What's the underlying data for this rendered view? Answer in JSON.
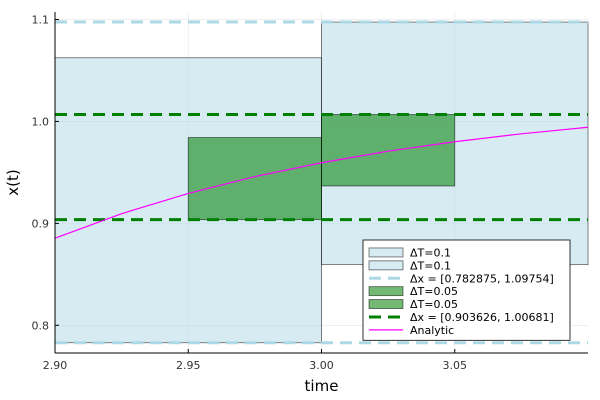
{
  "chart_data": {
    "type": "line",
    "title": "",
    "xlabel": "time",
    "ylabel": "x(t)",
    "xlim": [
      2.9,
      3.1
    ],
    "ylim": [
      0.7728,
      1.1074
    ],
    "x_ticks": [
      2.9,
      2.95,
      3.0,
      3.05
    ],
    "x_tick_labels": [
      "2.90",
      "2.95",
      "3.00",
      "3.05"
    ],
    "y_ticks": [
      0.8,
      0.9,
      1.0,
      1.1
    ],
    "y_tick_labels": [
      "0.8",
      "0.9",
      "1.0",
      "1.1"
    ],
    "grid": true,
    "legend_position": "bottom-right",
    "colors": {
      "light_fill": "#add8e6",
      "light_line": "#add8e6",
      "green_fill": "#008000",
      "green_line": "#008000",
      "analytic": "#ff00ff",
      "box_edge": "#000000"
    },
    "boxes": [
      {
        "name": "ΔT=0.1",
        "group": "light",
        "t0": 2.9,
        "t1": 3.0,
        "lo": 0.782875,
        "hi": 1.0625
      },
      {
        "name": "ΔT=0.1",
        "group": "light",
        "t0": 3.0,
        "t1": 3.1,
        "lo": 0.8595,
        "hi": 1.09754
      },
      {
        "name": "ΔT=0.05",
        "group": "green",
        "t0": 2.95,
        "t1": 3.0,
        "lo": 0.903626,
        "hi": 0.9842
      },
      {
        "name": "ΔT=0.05",
        "group": "green",
        "t0": 3.0,
        "t1": 3.05,
        "lo": 0.9367,
        "hi": 1.00681
      }
    ],
    "hlines": [
      {
        "name": "Δx = [0.782875, 1.09754]",
        "group": "light",
        "values": [
          0.782875,
          1.09754
        ]
      },
      {
        "name": "Δx = [0.903626, 1.00681]",
        "group": "green",
        "values": [
          0.903626,
          1.00681
        ]
      }
    ],
    "analytic": {
      "name": "Analytic",
      "x": [
        2.9,
        2.925,
        2.95,
        2.975,
        3.0,
        3.025,
        3.05,
        3.075,
        3.1
      ],
      "y": [
        0.8855,
        0.9095,
        0.9294,
        0.9459,
        0.9595,
        0.9708,
        0.9801,
        0.9879,
        0.9943
      ]
    },
    "legend": [
      {
        "label": "ΔT=0.1",
        "kind": "box",
        "group": "light"
      },
      {
        "label": "ΔT=0.1",
        "kind": "box",
        "group": "light"
      },
      {
        "label": "Δx = [0.782875, 1.09754]",
        "kind": "dash",
        "group": "light"
      },
      {
        "label": "ΔT=0.05",
        "kind": "box",
        "group": "green"
      },
      {
        "label": "ΔT=0.05",
        "kind": "box",
        "group": "green"
      },
      {
        "label": "Δx = [0.903626, 1.00681]",
        "kind": "dash",
        "group": "green"
      },
      {
        "label": "Analytic",
        "kind": "line",
        "group": "analytic"
      }
    ]
  }
}
